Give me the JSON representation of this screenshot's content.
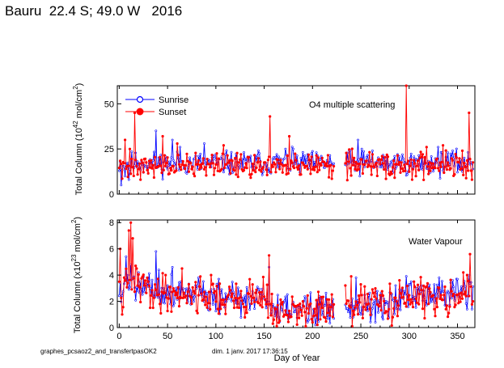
{
  "header": {
    "title": "Bauru  22.4 S; 49.0 W   2016"
  },
  "footer": {
    "left": "graphes_pcsaoz2_and_transfertpasOK2",
    "right": "dim. 1 janv. 2017 17:36:15"
  },
  "colors": {
    "sunrise": "#0000ff",
    "sunset": "#ff0000"
  },
  "chart_data": [
    {
      "type": "line",
      "annotation": "O4 multiple scattering",
      "ylabel": "Total Column (10^42 mol/cm^2)",
      "ylabel_parts": {
        "main": "Total Column (10",
        "exp": "42",
        "unit": " mol/cm",
        "unit_exp": "2",
        "close": ")"
      },
      "xlim": [
        -2,
        368
      ],
      "ylim": [
        0,
        60
      ],
      "yticks": [
        0,
        25,
        50
      ],
      "xticks": [
        0,
        50,
        100,
        150,
        200,
        250,
        300,
        350
      ],
      "show_xtick_labels": false,
      "gaps": [
        [
          222,
          234
        ]
      ],
      "legend": {
        "position": "top-left",
        "entries": [
          "Sunrise",
          "Sunset"
        ]
      },
      "series": [
        {
          "name": "Sunrise",
          "color": "#0000ff",
          "marker": "open-circle",
          "base": 17,
          "noise": 3.2,
          "seed": 11,
          "spikes": [
            [
              2,
              5
            ],
            [
              6,
              10
            ],
            [
              10,
              8
            ],
            [
              19,
              18
            ],
            [
              38,
              35
            ],
            [
              55,
              30
            ],
            [
              63,
              26
            ],
            [
              88,
              28
            ],
            [
              110,
              22
            ],
            [
              144,
              24
            ],
            [
              163,
              22
            ],
            [
              172,
              25
            ],
            [
              180,
              25
            ],
            [
              195,
              22
            ],
            [
              238,
              24
            ],
            [
              247,
              30
            ],
            [
              251,
              25
            ],
            [
              262,
              24
            ],
            [
              288,
              22
            ],
            [
              301,
              20
            ],
            [
              330,
              26
            ],
            [
              340,
              23
            ],
            [
              345,
              24
            ],
            [
              357,
              20
            ]
          ]
        },
        {
          "name": "Sunset",
          "color": "#ff0000",
          "marker": "filled-circle",
          "base": 16,
          "noise": 3.4,
          "seed": 27,
          "spikes": [
            [
              6,
              30
            ],
            [
              11,
              25
            ],
            [
              16,
              45
            ],
            [
              22,
              8
            ],
            [
              45,
              32
            ],
            [
              60,
              28
            ],
            [
              78,
              10
            ],
            [
              108,
              27
            ],
            [
              126,
              22
            ],
            [
              156,
              43
            ],
            [
              176,
              32
            ],
            [
              210,
              20
            ],
            [
              237,
              18
            ],
            [
              273,
              17
            ],
            [
              297,
              60
            ],
            [
              303,
              8
            ],
            [
              318,
              26
            ],
            [
              335,
              27
            ],
            [
              355,
              24
            ],
            [
              362,
              45
            ],
            [
              365,
              8
            ]
          ]
        }
      ]
    },
    {
      "type": "line",
      "annotation": "Water Vapour",
      "ylabel": "Total Column (x10^23 mol/cm^2)",
      "ylabel_parts": {
        "main": "Total Column (x10",
        "exp": "23",
        "unit": " mol/cm",
        "unit_exp": "2",
        "close": ")"
      },
      "xlabel": "Day of Year",
      "xlim": [
        -2,
        368
      ],
      "ylim": [
        0,
        8.2
      ],
      "yticks": [
        0,
        2,
        4,
        6,
        8
      ],
      "xticks": [
        0,
        50,
        100,
        150,
        200,
        250,
        300,
        350
      ],
      "gaps": [
        [
          222,
          234
        ]
      ],
      "series": [
        {
          "name": "Sunrise",
          "color": "#0000ff",
          "marker": "open-circle",
          "trend": [
            [
              0,
              2.8
            ],
            [
              15,
              3.6
            ],
            [
              40,
              2.8
            ],
            [
              80,
              2.7
            ],
            [
              120,
              2.0
            ],
            [
              150,
              2.5
            ],
            [
              163,
              1.0
            ],
            [
              190,
              1.4
            ],
            [
              221,
              1.4
            ],
            [
              235,
              1.6
            ],
            [
              260,
              1.8
            ],
            [
              300,
              2.2
            ],
            [
              330,
              2.5
            ],
            [
              366,
              2.8
            ]
          ],
          "noise": 0.65,
          "seed": 5,
          "spikes": [
            [
              7,
              5.4
            ],
            [
              12,
              4.8
            ],
            [
              20,
              4.2
            ],
            [
              38,
              5.8
            ],
            [
              41,
              4.4
            ],
            [
              55,
              4.6
            ],
            [
              64,
              3.5
            ],
            [
              82,
              3.8
            ],
            [
              103,
              3.7
            ],
            [
              155,
              4.6
            ],
            [
              165,
              0.8
            ],
            [
              245,
              3.8
            ],
            [
              297,
              3.9
            ],
            [
              331,
              3.8
            ],
            [
              345,
              3.6
            ],
            [
              362,
              4.0
            ]
          ]
        },
        {
          "name": "Sunset",
          "color": "#ff0000",
          "marker": "filled-circle",
          "trend": [
            [
              0,
              2.6
            ],
            [
              15,
              3.5
            ],
            [
              40,
              2.6
            ],
            [
              80,
              2.6
            ],
            [
              120,
              2.0
            ],
            [
              150,
              2.6
            ],
            [
              163,
              0.9
            ],
            [
              190,
              1.3
            ],
            [
              221,
              1.4
            ],
            [
              235,
              1.5
            ],
            [
              260,
              1.8
            ],
            [
              300,
              2.1
            ],
            [
              330,
              2.4
            ],
            [
              366,
              2.7
            ]
          ],
          "noise": 0.7,
          "seed": 41,
          "spikes": [
            [
              1,
              6.0
            ],
            [
              3,
              1.0
            ],
            [
              10,
              7.4
            ],
            [
              12,
              8.0
            ],
            [
              14,
              6.8
            ],
            [
              18,
              4.5
            ],
            [
              30,
              3.5
            ],
            [
              48,
              4.0
            ],
            [
              65,
              4.5
            ],
            [
              68,
              2.3
            ],
            [
              95,
              4.0
            ],
            [
              155,
              5.5
            ],
            [
              160,
              0.6
            ],
            [
              240,
              3.9
            ],
            [
              290,
              3.6
            ],
            [
              305,
              3.5
            ],
            [
              322,
              2.7
            ],
            [
              356,
              4.2
            ],
            [
              363,
              5.6
            ],
            [
              366,
              2.0
            ]
          ]
        }
      ]
    }
  ]
}
